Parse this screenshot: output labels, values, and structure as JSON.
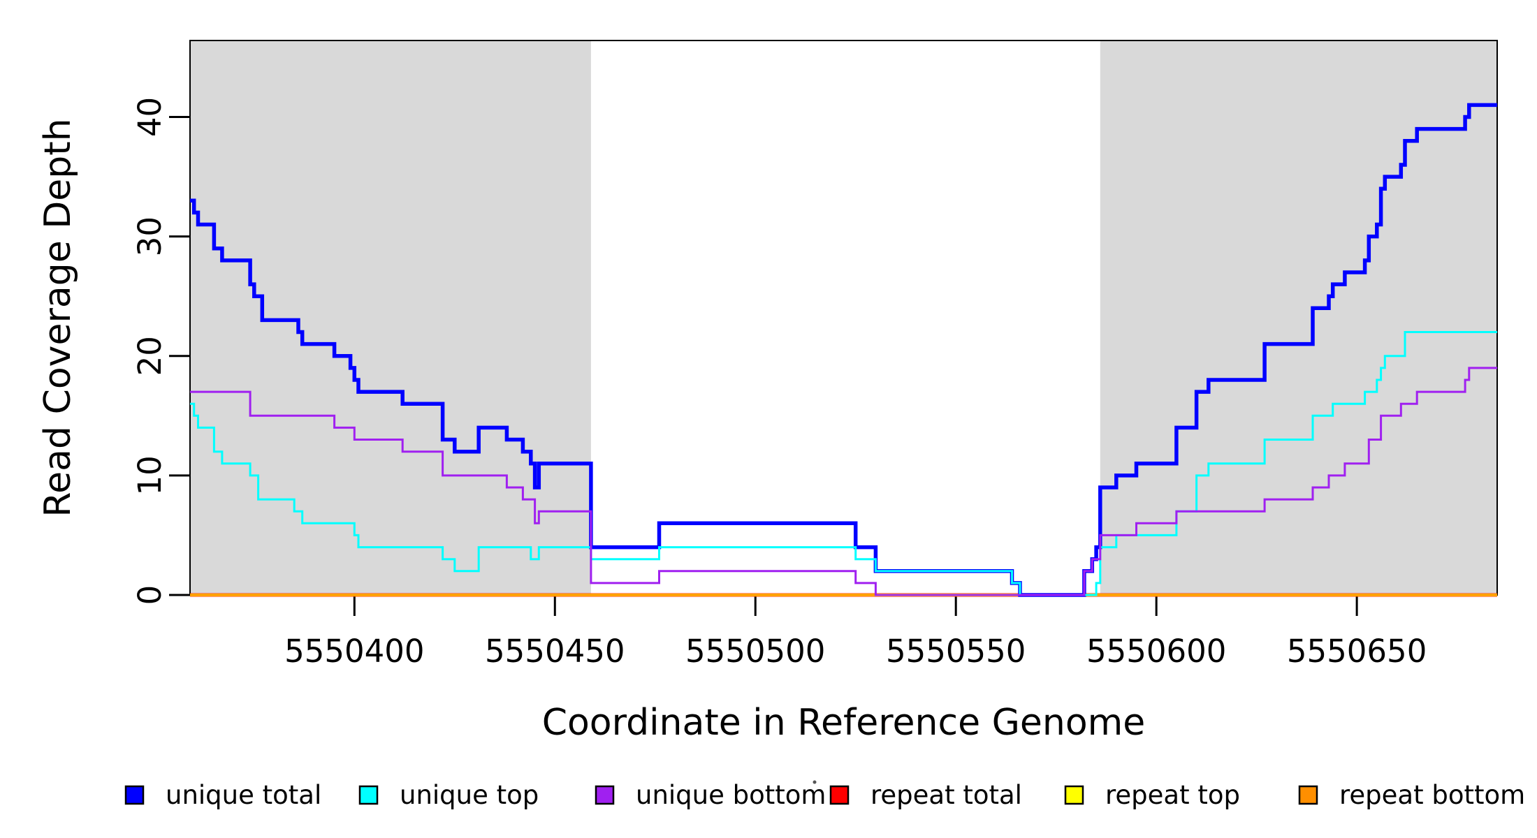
{
  "chart_data": {
    "type": "line",
    "subtype": "step-after",
    "title": "",
    "xlabel": "Coordinate in Reference Genome",
    "ylabel": "Read Coverage Depth",
    "xlim": [
      5550359,
      5550685
    ],
    "ylim": [
      0,
      46.4
    ],
    "x_ticks": [
      5550400,
      5550450,
      5550500,
      5550550,
      5550600,
      5550650
    ],
    "x_tick_labels": [
      "5550400",
      "5550450",
      "5550500",
      "5550550",
      "5550600",
      "5550650"
    ],
    "y_ticks": [
      0,
      10,
      20,
      30,
      40
    ],
    "y_tick_labels": [
      "0",
      "10",
      "20",
      "30",
      "40"
    ],
    "grid": "off",
    "legend_position": "bottom",
    "shade_color": "#D9D9D9",
    "shaded_regions": [
      {
        "x0": 5550359,
        "x1": 5550459
      },
      {
        "x0": 5550586,
        "x1": 5550685
      }
    ],
    "series": [
      {
        "name": "unique total",
        "color": "#0000FF",
        "line_width": 5.5,
        "points": [
          [
            5550359,
            33
          ],
          [
            5550360,
            32
          ],
          [
            5550361,
            31
          ],
          [
            5550365,
            29
          ],
          [
            5550367,
            28
          ],
          [
            5550374,
            26
          ],
          [
            5550375,
            25
          ],
          [
            5550377,
            23
          ],
          [
            5550386,
            22
          ],
          [
            5550387,
            21
          ],
          [
            5550395,
            20
          ],
          [
            5550399,
            19
          ],
          [
            5550400,
            18
          ],
          [
            5550401,
            17
          ],
          [
            5550412,
            16
          ],
          [
            5550422,
            13
          ],
          [
            5550425,
            12
          ],
          [
            5550431,
            14
          ],
          [
            5550438,
            13
          ],
          [
            5550442,
            12
          ],
          [
            5550444,
            11
          ],
          [
            5550445,
            9
          ],
          [
            5550446,
            11
          ],
          [
            5550459,
            4
          ],
          [
            5550476,
            6
          ],
          [
            5550525,
            4
          ],
          [
            5550530,
            2
          ],
          [
            5550564,
            1
          ],
          [
            5550566,
            0
          ],
          [
            5550582,
            2
          ],
          [
            5550584,
            3
          ],
          [
            5550585,
            4
          ],
          [
            5550586,
            9
          ],
          [
            5550590,
            10
          ],
          [
            5550595,
            11
          ],
          [
            5550605,
            14
          ],
          [
            5550610,
            17
          ],
          [
            5550613,
            18
          ],
          [
            5550627,
            21
          ],
          [
            5550639,
            24
          ],
          [
            5550643,
            25
          ],
          [
            5550644,
            26
          ],
          [
            5550647,
            27
          ],
          [
            5550652,
            28
          ],
          [
            5550653,
            30
          ],
          [
            5550655,
            31
          ],
          [
            5550656,
            34
          ],
          [
            5550657,
            35
          ],
          [
            5550661,
            36
          ],
          [
            5550662,
            38
          ],
          [
            5550665,
            39
          ],
          [
            5550677,
            40
          ],
          [
            5550678,
            41
          ]
        ]
      },
      {
        "name": "unique top",
        "color": "#00FFFF",
        "line_width": 3,
        "points": [
          [
            5550359,
            16
          ],
          [
            5550360,
            15
          ],
          [
            5550361,
            14
          ],
          [
            5550365,
            12
          ],
          [
            5550367,
            11
          ],
          [
            5550374,
            10
          ],
          [
            5550376,
            8
          ],
          [
            5550385,
            7
          ],
          [
            5550387,
            6
          ],
          [
            5550400,
            5
          ],
          [
            5550401,
            4
          ],
          [
            5550422,
            3
          ],
          [
            5550425,
            2
          ],
          [
            5550431,
            4
          ],
          [
            5550444,
            3
          ],
          [
            5550446,
            4
          ],
          [
            5550459,
            3
          ],
          [
            5550476,
            4
          ],
          [
            5550525,
            3
          ],
          [
            5550530,
            2
          ],
          [
            5550564,
            1
          ],
          [
            5550566,
            0
          ],
          [
            5550585,
            1
          ],
          [
            5550586,
            4
          ],
          [
            5550590,
            5
          ],
          [
            5550605,
            7
          ],
          [
            5550610,
            10
          ],
          [
            5550613,
            11
          ],
          [
            5550627,
            13
          ],
          [
            5550639,
            15
          ],
          [
            5550644,
            16
          ],
          [
            5550652,
            17
          ],
          [
            5550655,
            18
          ],
          [
            5550656,
            19
          ],
          [
            5550657,
            20
          ],
          [
            5550662,
            22
          ]
        ]
      },
      {
        "name": "unique bottom",
        "color": "#A020F0",
        "line_width": 3,
        "points": [
          [
            5550359,
            17
          ],
          [
            5550374,
            15
          ],
          [
            5550395,
            14
          ],
          [
            5550400,
            13
          ],
          [
            5550412,
            12
          ],
          [
            5550422,
            10
          ],
          [
            5550438,
            9
          ],
          [
            5550442,
            8
          ],
          [
            5550445,
            6
          ],
          [
            5550446,
            7
          ],
          [
            5550459,
            1
          ],
          [
            5550476,
            2
          ],
          [
            5550525,
            1
          ],
          [
            5550530,
            0
          ],
          [
            5550582,
            2
          ],
          [
            5550584,
            3
          ],
          [
            5550586,
            5
          ],
          [
            5550595,
            6
          ],
          [
            5550605,
            7
          ],
          [
            5550627,
            8
          ],
          [
            5550639,
            9
          ],
          [
            5550643,
            10
          ],
          [
            5550647,
            11
          ],
          [
            5550653,
            13
          ],
          [
            5550656,
            15
          ],
          [
            5550661,
            16
          ],
          [
            5550665,
            17
          ],
          [
            5550677,
            18
          ],
          [
            5550678,
            19
          ]
        ]
      },
      {
        "name": "repeat total",
        "color": "#FF0000",
        "line_width": 5,
        "points": [
          [
            5550359,
            0
          ]
        ]
      },
      {
        "name": "repeat top",
        "color": "#FFFF00",
        "line_width": 4,
        "points": [
          [
            5550359,
            0
          ]
        ]
      },
      {
        "name": "repeat bottom",
        "color": "#FF8F00",
        "line_width": 3,
        "points": [
          [
            5550359,
            0
          ]
        ]
      }
    ],
    "draw_order": [
      3,
      4,
      5,
      0,
      1,
      2
    ],
    "legend": [
      "unique total",
      "unique top",
      "unique bottom",
      "repeat total",
      "repeat top",
      "repeat bottom"
    ]
  }
}
